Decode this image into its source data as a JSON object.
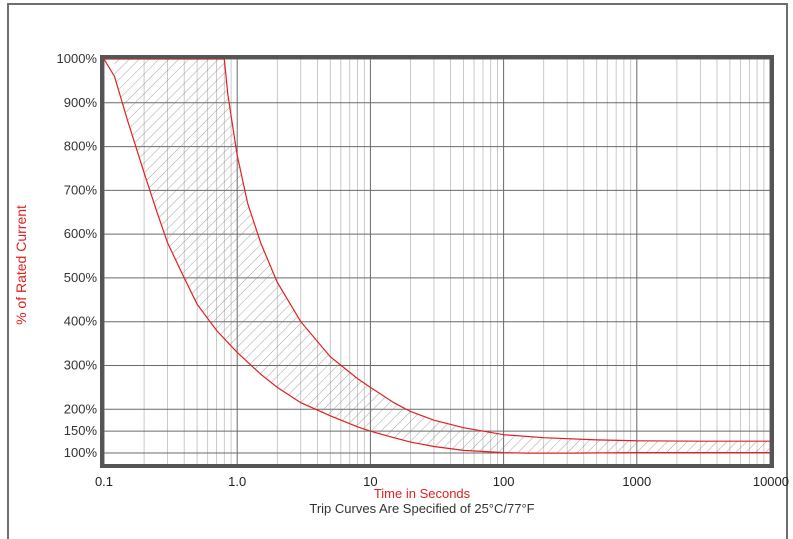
{
  "chart_data": {
    "type": "area",
    "xlabel": "Time in Seconds",
    "ylabel": "% of Rated Current",
    "note": "Trip Curves Are Specified of 25°C/77°F",
    "x_scale": "log",
    "xlim": [
      0.1,
      10000
    ],
    "ylim": [
      75,
      1000
    ],
    "x_ticks": [
      {
        "value": 0.1,
        "label": "0.1"
      },
      {
        "value": 1,
        "label": "1.0"
      },
      {
        "value": 10,
        "label": "10"
      },
      {
        "value": 100,
        "label": "100"
      },
      {
        "value": 1000,
        "label": "1000"
      },
      {
        "value": 10000,
        "label": "10000"
      }
    ],
    "y_ticks": [
      {
        "value": 1000,
        "label": "1000%"
      },
      {
        "value": 900,
        "label": "900%"
      },
      {
        "value": 800,
        "label": "800%"
      },
      {
        "value": 700,
        "label": "700%"
      },
      {
        "value": 600,
        "label": "600%"
      },
      {
        "value": 500,
        "label": "500%"
      },
      {
        "value": 400,
        "label": "400%"
      },
      {
        "value": 300,
        "label": "300%"
      },
      {
        "value": 200,
        "label": "200%"
      },
      {
        "value": 150,
        "label": "150%"
      },
      {
        "value": 100,
        "label": "100%"
      }
    ],
    "grid": true,
    "colors": {
      "curve": "#e02020",
      "hatch": "#8c8c8c",
      "grid": "#6a6a6a",
      "minor_grid": "#bdbdbd",
      "border": "#555555"
    },
    "series": [
      {
        "x": [
          0.12,
          0.15,
          0.2,
          0.25,
          0.3,
          0.4,
          0.5,
          0.7,
          1,
          1.5,
          2,
          3,
          5,
          8,
          10,
          15,
          20,
          30,
          50,
          100,
          150,
          300,
          1000,
          3000,
          10000
        ],
        "y": [
          960,
          860,
          740,
          650,
          580,
          500,
          440,
          380,
          330,
          280,
          250,
          215,
          185,
          160,
          150,
          135,
          125,
          115,
          106,
          101,
          100,
          100,
          101,
          101,
          101
        ]
      },
      {
        "x": [
          0.8,
          0.85,
          0.9,
          1,
          1.2,
          1.5,
          2,
          3,
          5,
          8,
          10,
          15,
          20,
          30,
          50,
          100,
          200,
          500,
          1000,
          3000,
          10000
        ],
        "y": [
          1000,
          920,
          870,
          780,
          670,
          580,
          490,
          400,
          320,
          270,
          250,
          215,
          195,
          175,
          158,
          142,
          135,
          130,
          128,
          127,
          127
        ]
      }
    ]
  }
}
